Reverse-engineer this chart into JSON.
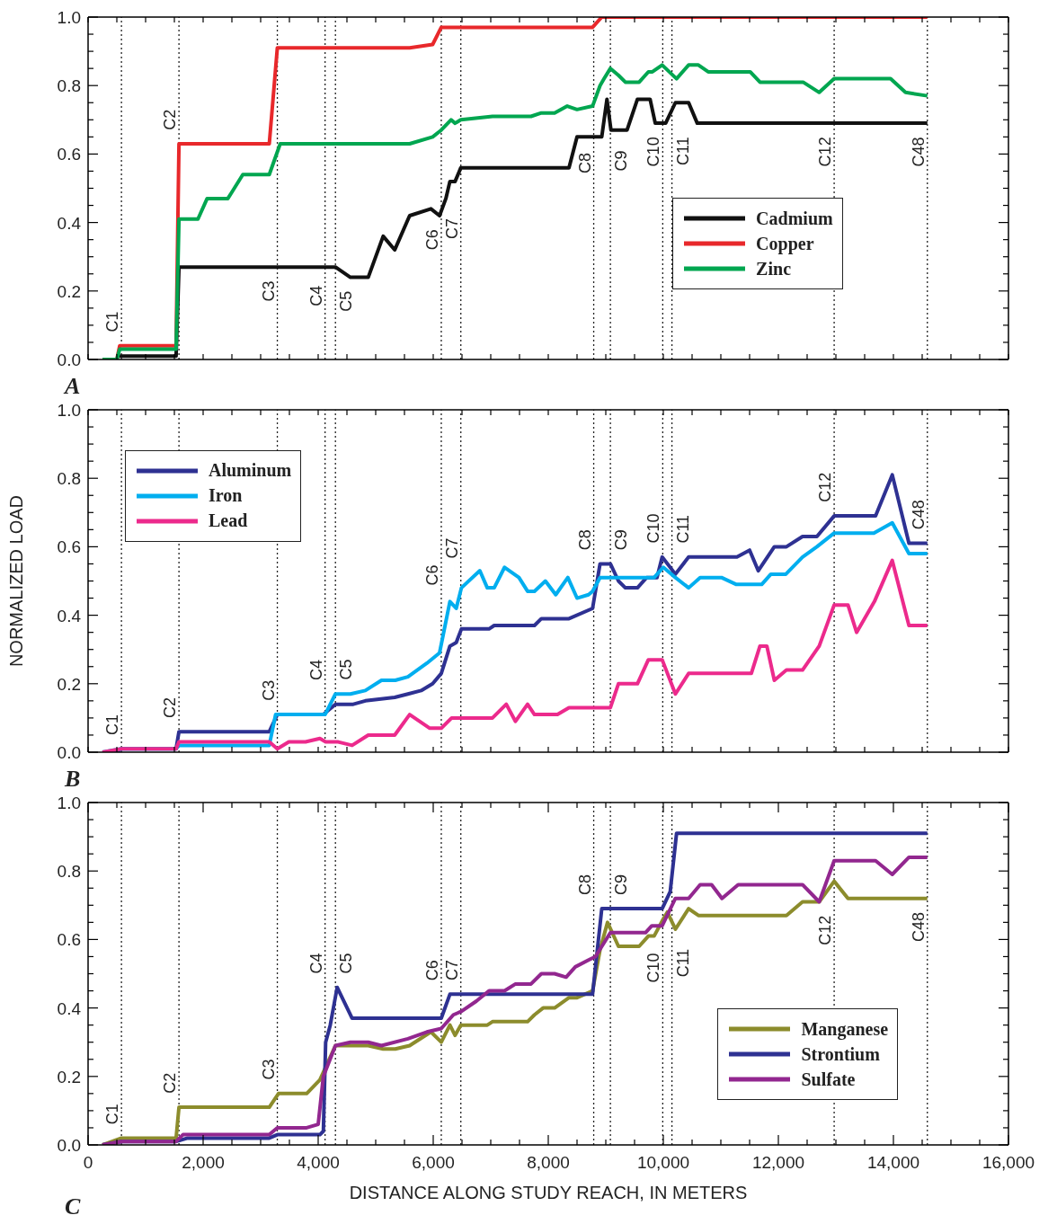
{
  "chart_data": [
    {
      "type": "line",
      "xlim": [
        0,
        16000
      ],
      "ylim": [
        0,
        1
      ],
      "tick_labels": "y",
      "legend": "right",
      "annotations": [
        "A"
      ],
      "xticks": [
        {
          "value": 0,
          "label": null
        },
        {
          "value": 500,
          "label": null
        },
        {
          "value": 1000,
          "label": null
        },
        {
          "value": 1500,
          "label": null
        },
        {
          "value": 2000,
          "label": null
        },
        {
          "value": 2500,
          "label": null
        },
        {
          "value": 3000,
          "label": null
        },
        {
          "value": 3500,
          "label": null
        },
        {
          "value": 4000,
          "label": null
        },
        {
          "value": 4500,
          "label": null
        },
        {
          "value": 5000,
          "label": null
        },
        {
          "value": 5500,
          "label": null
        },
        {
          "value": 6000,
          "label": null
        },
        {
          "value": 6500,
          "label": null
        },
        {
          "value": 7000,
          "label": null
        },
        {
          "value": 7500,
          "label": null
        },
        {
          "value": 8000,
          "label": null
        },
        {
          "value": 8500,
          "label": null
        },
        {
          "value": 9000,
          "label": null
        },
        {
          "value": 9500,
          "label": null
        },
        {
          "value": 10000,
          "label": null
        },
        {
          "value": 10500,
          "label": null
        },
        {
          "value": 11000,
          "label": null
        },
        {
          "value": 11500,
          "label": null
        },
        {
          "value": 12000,
          "label": null
        },
        {
          "value": 12500,
          "label": null
        },
        {
          "value": 13000,
          "label": null
        },
        {
          "value": 13500,
          "label": null
        },
        {
          "value": 14000,
          "label": null
        },
        {
          "value": 14500,
          "label": null
        },
        {
          "value": 15000,
          "label": null
        },
        {
          "value": 15500,
          "label": null
        },
        {
          "value": 16000,
          "label": null
        }
      ],
      "yticks": [
        {
          "value": 0,
          "label": "0.0"
        },
        {
          "value": 0.05,
          "label": null
        },
        {
          "value": 0.1,
          "label": null
        },
        {
          "value": 0.15,
          "label": null
        },
        {
          "value": 0.2,
          "label": "0.2"
        },
        {
          "value": 0.25,
          "label": null
        },
        {
          "value": 0.3,
          "label": null
        },
        {
          "value": 0.35,
          "label": null
        },
        {
          "value": 0.4,
          "label": "0.4"
        },
        {
          "value": 0.45,
          "label": null
        },
        {
          "value": 0.5,
          "label": null
        },
        {
          "value": 0.55,
          "label": null
        },
        {
          "value": 0.6,
          "label": "0.6"
        },
        {
          "value": 0.65,
          "label": null
        },
        {
          "value": 0.7,
          "label": null
        },
        {
          "value": 0.75,
          "label": null
        },
        {
          "value": 0.8,
          "label": "0.8"
        },
        {
          "value": 0.85,
          "label": null
        },
        {
          "value": 0.9,
          "label": null
        },
        {
          "value": 0.95,
          "label": null
        },
        {
          "value": 1,
          "label": "1.0"
        }
      ],
      "ref_lines": [
        {
          "axis": "x",
          "value": 580,
          "label": "C1",
          "line_style": "dotted"
        },
        {
          "axis": "x",
          "value": 1580,
          "label": "C2",
          "line_style": "dotted"
        },
        {
          "axis": "x",
          "value": 3290,
          "label": "C3",
          "line_style": "dotted"
        },
        {
          "axis": "x",
          "value": 4120,
          "label": "C4",
          "line_style": "dotted"
        },
        {
          "axis": "x",
          "value": 4300,
          "label": "C5",
          "line_style": "dotted"
        },
        {
          "axis": "x",
          "value": 6140,
          "label": "C6",
          "line_style": "dotted"
        },
        {
          "axis": "x",
          "value": 6480,
          "label": "C7",
          "line_style": "dotted"
        },
        {
          "axis": "x",
          "value": 8790,
          "label": "C8",
          "line_style": "dotted"
        },
        {
          "axis": "x",
          "value": 9080,
          "label": "C9",
          "line_style": "dotted"
        },
        {
          "axis": "x",
          "value": 9990,
          "label": "C10",
          "line_style": "dotted"
        },
        {
          "axis": "x",
          "value": 10150,
          "label": "C11",
          "line_style": "dotted"
        },
        {
          "axis": "x",
          "value": 12970,
          "label": "C12",
          "line_style": "dotted"
        },
        {
          "axis": "x",
          "value": 14590,
          "label": "C48",
          "line_style": "dotted"
        }
      ],
      "series": [
        {
          "name": "Cadmium",
          "color": "#111111",
          "x": [
            500,
            1530,
            1580,
            4300,
            4560,
            4870,
            5130,
            5330,
            5590,
            5960,
            6110,
            6220,
            6290,
            6380,
            6480,
            8360,
            8500,
            8930,
            9020,
            9090,
            9370,
            9550,
            9770,
            9860,
            10040,
            10210,
            10440,
            10590,
            14590
          ],
          "values": [
            0.01,
            0.01,
            0.27,
            0.27,
            0.24,
            0.24,
            0.36,
            0.32,
            0.42,
            0.44,
            0.42,
            0.47,
            0.52,
            0.52,
            0.56,
            0.56,
            0.65,
            0.65,
            0.76,
            0.67,
            0.67,
            0.76,
            0.76,
            0.69,
            0.69,
            0.75,
            0.75,
            0.69,
            0.69
          ]
        },
        {
          "name": "Copper",
          "color": "#e8282b",
          "x": [
            250,
            500,
            550,
            1530,
            1580,
            3150,
            3290,
            5590,
            5990,
            6140,
            8770,
            8930,
            14590
          ],
          "values": [
            0,
            0,
            0.04,
            0.04,
            0.63,
            0.63,
            0.91,
            0.91,
            0.92,
            0.97,
            0.97,
            1,
            1
          ]
        },
        {
          "name": "Zinc",
          "color": "#00a650",
          "x": [
            250,
            500,
            550,
            1530,
            1580,
            1910,
            2070,
            2430,
            2690,
            3150,
            3340,
            5590,
            5990,
            6140,
            6310,
            6380,
            6480,
            7030,
            7700,
            7880,
            8110,
            8330,
            8500,
            8770,
            8900,
            8970,
            9080,
            9220,
            9340,
            9580,
            9740,
            9810,
            9980,
            10230,
            10440,
            10610,
            10780,
            11510,
            11680,
            12430,
            12710,
            12970,
            13950,
            14210,
            14590
          ],
          "values": [
            0,
            0,
            0.03,
            0.03,
            0.41,
            0.41,
            0.47,
            0.47,
            0.54,
            0.54,
            0.63,
            0.63,
            0.65,
            0.67,
            0.7,
            0.69,
            0.7,
            0.71,
            0.71,
            0.72,
            0.72,
            0.74,
            0.73,
            0.74,
            0.8,
            0.82,
            0.85,
            0.83,
            0.81,
            0.81,
            0.84,
            0.84,
            0.86,
            0.82,
            0.86,
            0.86,
            0.84,
            0.84,
            0.81,
            0.81,
            0.78,
            0.82,
            0.82,
            0.78,
            0.77
          ]
        }
      ]
    },
    {
      "type": "line",
      "xlim": [
        0,
        16000
      ],
      "ylim": [
        0,
        1
      ],
      "tick_labels": "y",
      "legend": "top left",
      "annotations": [
        "B"
      ],
      "ylabel": "NORMALIZED LOAD",
      "xticks": [
        {
          "value": 0,
          "label": null
        },
        {
          "value": 500,
          "label": null
        },
        {
          "value": 1000,
          "label": null
        },
        {
          "value": 1500,
          "label": null
        },
        {
          "value": 2000,
          "label": null
        },
        {
          "value": 2500,
          "label": null
        },
        {
          "value": 3000,
          "label": null
        },
        {
          "value": 3500,
          "label": null
        },
        {
          "value": 4000,
          "label": null
        },
        {
          "value": 4500,
          "label": null
        },
        {
          "value": 5000,
          "label": null
        },
        {
          "value": 5500,
          "label": null
        },
        {
          "value": 6000,
          "label": null
        },
        {
          "value": 6500,
          "label": null
        },
        {
          "value": 7000,
          "label": null
        },
        {
          "value": 7500,
          "label": null
        },
        {
          "value": 8000,
          "label": null
        },
        {
          "value": 8500,
          "label": null
        },
        {
          "value": 9000,
          "label": null
        },
        {
          "value": 9500,
          "label": null
        },
        {
          "value": 10000,
          "label": null
        },
        {
          "value": 10500,
          "label": null
        },
        {
          "value": 11000,
          "label": null
        },
        {
          "value": 11500,
          "label": null
        },
        {
          "value": 12000,
          "label": null
        },
        {
          "value": 12500,
          "label": null
        },
        {
          "value": 13000,
          "label": null
        },
        {
          "value": 13500,
          "label": null
        },
        {
          "value": 14000,
          "label": null
        },
        {
          "value": 14500,
          "label": null
        },
        {
          "value": 15000,
          "label": null
        },
        {
          "value": 15500,
          "label": null
        },
        {
          "value": 16000,
          "label": null
        }
      ],
      "yticks": [
        {
          "value": 0,
          "label": "0.0"
        },
        {
          "value": 0.05,
          "label": null
        },
        {
          "value": 0.1,
          "label": null
        },
        {
          "value": 0.15,
          "label": null
        },
        {
          "value": 0.2,
          "label": "0.2"
        },
        {
          "value": 0.25,
          "label": null
        },
        {
          "value": 0.3,
          "label": null
        },
        {
          "value": 0.35,
          "label": null
        },
        {
          "value": 0.4,
          "label": "0.4"
        },
        {
          "value": 0.45,
          "label": null
        },
        {
          "value": 0.5,
          "label": null
        },
        {
          "value": 0.55,
          "label": null
        },
        {
          "value": 0.6,
          "label": "0.6"
        },
        {
          "value": 0.65,
          "label": null
        },
        {
          "value": 0.7,
          "label": null
        },
        {
          "value": 0.75,
          "label": null
        },
        {
          "value": 0.8,
          "label": "0.8"
        },
        {
          "value": 0.85,
          "label": null
        },
        {
          "value": 0.9,
          "label": null
        },
        {
          "value": 0.95,
          "label": null
        },
        {
          "value": 1,
          "label": "1.0"
        }
      ],
      "ref_lines": [
        {
          "axis": "x",
          "value": 580,
          "label": "C1",
          "line_style": "dotted"
        },
        {
          "axis": "x",
          "value": 1580,
          "label": "C2",
          "line_style": "dotted"
        },
        {
          "axis": "x",
          "value": 3290,
          "label": "C3",
          "line_style": "dotted"
        },
        {
          "axis": "x",
          "value": 4120,
          "label": "C4",
          "line_style": "dotted"
        },
        {
          "axis": "x",
          "value": 4300,
          "label": "C5",
          "line_style": "dotted"
        },
        {
          "axis": "x",
          "value": 6140,
          "label": "C6",
          "line_style": "dotted"
        },
        {
          "axis": "x",
          "value": 6480,
          "label": "C7",
          "line_style": "dotted"
        },
        {
          "axis": "x",
          "value": 8790,
          "label": "C8",
          "line_style": "dotted"
        },
        {
          "axis": "x",
          "value": 9080,
          "label": "C9",
          "line_style": "dotted"
        },
        {
          "axis": "x",
          "value": 9990,
          "label": "C10",
          "line_style": "dotted"
        },
        {
          "axis": "x",
          "value": 10150,
          "label": "C11",
          "line_style": "dotted"
        },
        {
          "axis": "x",
          "value": 12970,
          "label": "C12",
          "line_style": "dotted"
        },
        {
          "axis": "x",
          "value": 14590,
          "label": "C48",
          "line_style": "dotted"
        }
      ],
      "series": [
        {
          "name": "Aluminum",
          "color": "#2e3192",
          "x": [
            250,
            500,
            580,
            1530,
            1580,
            3150,
            3290,
            4090,
            4300,
            4610,
            4820,
            5330,
            5560,
            5790,
            5990,
            6140,
            6290,
            6400,
            6490,
            6970,
            7060,
            7760,
            7880,
            8360,
            8770,
            8900,
            9080,
            9220,
            9340,
            9550,
            9710,
            9890,
            9980,
            10210,
            10440,
            11280,
            11500,
            11650,
            11930,
            12140,
            12420,
            12670,
            12970,
            13690,
            13980,
            14270,
            14590
          ],
          "values": [
            0,
            0,
            0.01,
            0.01,
            0.06,
            0.06,
            0.11,
            0.11,
            0.14,
            0.14,
            0.15,
            0.16,
            0.17,
            0.18,
            0.2,
            0.23,
            0.31,
            0.32,
            0.36,
            0.36,
            0.37,
            0.37,
            0.39,
            0.39,
            0.42,
            0.55,
            0.55,
            0.5,
            0.48,
            0.48,
            0.51,
            0.51,
            0.57,
            0.52,
            0.57,
            0.57,
            0.59,
            0.53,
            0.6,
            0.6,
            0.63,
            0.63,
            0.69,
            0.69,
            0.81,
            0.61,
            0.61
          ]
        },
        {
          "name": "Iron",
          "color": "#00aeef",
          "x": [
            250,
            580,
            1530,
            1580,
            3150,
            3260,
            4120,
            4300,
            4560,
            4820,
            5100,
            5340,
            5560,
            5890,
            6110,
            6290,
            6400,
            6490,
            6810,
            6940,
            7060,
            7240,
            7490,
            7640,
            7760,
            7950,
            8130,
            8340,
            8500,
            8700,
            8770,
            8900,
            9840,
            10000,
            10210,
            10440,
            10640,
            11010,
            11270,
            11710,
            11870,
            12130,
            12420,
            12670,
            12970,
            13660,
            13980,
            14270,
            14590
          ],
          "values": [
            0,
            0.01,
            0.01,
            0.02,
            0.02,
            0.11,
            0.11,
            0.17,
            0.17,
            0.18,
            0.21,
            0.21,
            0.22,
            0.26,
            0.29,
            0.44,
            0.42,
            0.48,
            0.53,
            0.48,
            0.48,
            0.54,
            0.51,
            0.47,
            0.47,
            0.5,
            0.46,
            0.51,
            0.45,
            0.46,
            0.47,
            0.51,
            0.51,
            0.54,
            0.51,
            0.48,
            0.51,
            0.51,
            0.49,
            0.49,
            0.52,
            0.52,
            0.57,
            0.6,
            0.64,
            0.64,
            0.67,
            0.58,
            0.58
          ]
        },
        {
          "name": "Lead",
          "color": "#ec2a8c",
          "x": [
            250,
            580,
            1530,
            1580,
            3150,
            3290,
            3490,
            3780,
            4030,
            4130,
            4350,
            4590,
            4870,
            5330,
            5590,
            5940,
            6140,
            6320,
            7030,
            7270,
            7430,
            7640,
            7760,
            8160,
            8360,
            9080,
            9220,
            9550,
            9740,
            9980,
            10210,
            10440,
            11530,
            11680,
            11800,
            11930,
            12140,
            12420,
            12710,
            12970,
            13210,
            13360,
            13670,
            13980,
            14270,
            14590
          ],
          "values": [
            0,
            0.01,
            0.01,
            0.03,
            0.03,
            0.01,
            0.03,
            0.03,
            0.04,
            0.03,
            0.03,
            0.02,
            0.05,
            0.05,
            0.11,
            0.07,
            0.07,
            0.1,
            0.1,
            0.14,
            0.09,
            0.14,
            0.11,
            0.11,
            0.13,
            0.13,
            0.2,
            0.2,
            0.27,
            0.27,
            0.17,
            0.23,
            0.23,
            0.31,
            0.31,
            0.21,
            0.24,
            0.24,
            0.31,
            0.43,
            0.43,
            0.35,
            0.44,
            0.56,
            0.37,
            0.37
          ]
        }
      ]
    },
    {
      "type": "line",
      "xlim": [
        0,
        16000
      ],
      "ylim": [
        0,
        1
      ],
      "legend": "bottom right",
      "annotations": [
        "C"
      ],
      "xlabel": "DISTANCE ALONG STUDY REACH, IN METERS",
      "xticks": [
        0,
        {
          "value": 500,
          "label": null
        },
        {
          "value": 1000,
          "label": null
        },
        {
          "value": 1500,
          "label": null
        },
        {
          "value": 2000,
          "label": "2,000"
        },
        {
          "value": 2500,
          "label": null
        },
        {
          "value": 3000,
          "label": null
        },
        {
          "value": 3500,
          "label": null
        },
        {
          "value": 4000,
          "label": "4,000"
        },
        {
          "value": 4500,
          "label": null
        },
        {
          "value": 5000,
          "label": null
        },
        {
          "value": 5500,
          "label": null
        },
        {
          "value": 6000,
          "label": "6,000"
        },
        {
          "value": 6500,
          "label": null
        },
        {
          "value": 7000,
          "label": null
        },
        {
          "value": 7500,
          "label": null
        },
        {
          "value": 8000,
          "label": "8,000"
        },
        {
          "value": 8500,
          "label": null
        },
        {
          "value": 9000,
          "label": null
        },
        {
          "value": 9500,
          "label": null
        },
        {
          "value": 10000,
          "label": "10,000"
        },
        {
          "value": 10500,
          "label": null
        },
        {
          "value": 11000,
          "label": null
        },
        {
          "value": 11500,
          "label": null
        },
        {
          "value": 12000,
          "label": "12,000"
        },
        {
          "value": 12500,
          "label": null
        },
        {
          "value": 13000,
          "label": null
        },
        {
          "value": 13500,
          "label": null
        },
        {
          "value": 14000,
          "label": "14,000"
        },
        {
          "value": 14500,
          "label": null
        },
        {
          "value": 15000,
          "label": null
        },
        {
          "value": 15500,
          "label": null
        },
        {
          "value": 16000,
          "label": "16,000"
        }
      ],
      "yticks": [
        {
          "value": 0,
          "label": "0.0"
        },
        {
          "value": 0.05,
          "label": null
        },
        {
          "value": 0.1,
          "label": null
        },
        {
          "value": 0.15,
          "label": null
        },
        {
          "value": 0.2,
          "label": "0.2"
        },
        {
          "value": 0.25,
          "label": null
        },
        {
          "value": 0.3,
          "label": null
        },
        {
          "value": 0.35,
          "label": null
        },
        {
          "value": 0.4,
          "label": "0.4"
        },
        {
          "value": 0.45,
          "label": null
        },
        {
          "value": 0.5,
          "label": null
        },
        {
          "value": 0.55,
          "label": null
        },
        {
          "value": 0.6,
          "label": "0.6"
        },
        {
          "value": 0.65,
          "label": null
        },
        {
          "value": 0.7,
          "label": null
        },
        {
          "value": 0.75,
          "label": null
        },
        {
          "value": 0.8,
          "label": "0.8"
        },
        {
          "value": 0.85,
          "label": null
        },
        {
          "value": 0.9,
          "label": null
        },
        {
          "value": 0.95,
          "label": null
        },
        {
          "value": 1,
          "label": "1.0"
        }
      ],
      "ref_lines": [
        {
          "axis": "x",
          "value": 580,
          "label": "C1",
          "line_style": "dotted"
        },
        {
          "axis": "x",
          "value": 1580,
          "label": "C2",
          "line_style": "dotted"
        },
        {
          "axis": "x",
          "value": 3290,
          "label": "C3",
          "line_style": "dotted"
        },
        {
          "axis": "x",
          "value": 4120,
          "label": "C4",
          "line_style": "dotted"
        },
        {
          "axis": "x",
          "value": 4300,
          "label": "C5",
          "line_style": "dotted"
        },
        {
          "axis": "x",
          "value": 6140,
          "label": "C6",
          "line_style": "dotted"
        },
        {
          "axis": "x",
          "value": 6480,
          "label": "C7",
          "line_style": "dotted"
        },
        {
          "axis": "x",
          "value": 8790,
          "label": "C8",
          "line_style": "dotted"
        },
        {
          "axis": "x",
          "value": 9080,
          "label": "C9",
          "line_style": "dotted"
        },
        {
          "axis": "x",
          "value": 9990,
          "label": "C10",
          "line_style": "dotted"
        },
        {
          "axis": "x",
          "value": 10150,
          "label": "C11",
          "line_style": "dotted"
        },
        {
          "axis": "x",
          "value": 12970,
          "label": "C12",
          "line_style": "dotted"
        },
        {
          "axis": "x",
          "value": 14590,
          "label": "C48",
          "line_style": "dotted"
        }
      ],
      "series": [
        {
          "name": "Manganese",
          "color": "#8c8c2c",
          "x": [
            250,
            580,
            1530,
            1580,
            3150,
            3310,
            3800,
            4030,
            4300,
            4870,
            5130,
            5340,
            5590,
            5960,
            6140,
            6290,
            6380,
            6480,
            6940,
            7030,
            7640,
            7760,
            7910,
            8110,
            8360,
            8500,
            8770,
            8900,
            9030,
            9220,
            9580,
            9740,
            9840,
            10000,
            10070,
            10210,
            10440,
            10610,
            12140,
            12420,
            12710,
            12970,
            13210,
            14590
          ],
          "values": [
            0,
            0.02,
            0.02,
            0.11,
            0.11,
            0.15,
            0.15,
            0.19,
            0.29,
            0.29,
            0.28,
            0.28,
            0.29,
            0.33,
            0.3,
            0.35,
            0.32,
            0.35,
            0.35,
            0.36,
            0.36,
            0.38,
            0.4,
            0.4,
            0.43,
            0.43,
            0.45,
            0.57,
            0.65,
            0.58,
            0.58,
            0.61,
            0.61,
            0.66,
            0.68,
            0.63,
            0.69,
            0.67,
            0.67,
            0.71,
            0.71,
            0.77,
            0.72,
            0.72
          ]
        },
        {
          "name": "Strontium",
          "color": "#2e3192",
          "x": [
            250,
            580,
            1530,
            1730,
            3150,
            3290,
            4030,
            4090,
            4130,
            4210,
            4330,
            4590,
            6140,
            6290,
            8770,
            8930,
            9980,
            10120,
            10230,
            14590
          ],
          "values": [
            0,
            0.01,
            0.01,
            0.02,
            0.02,
            0.03,
            0.03,
            0.04,
            0.3,
            0.35,
            0.46,
            0.37,
            0.37,
            0.44,
            0.44,
            0.69,
            0.69,
            0.74,
            0.91,
            0.91
          ]
        },
        {
          "name": "Sulfate",
          "color": "#92278f",
          "x": [
            250,
            580,
            1530,
            1650,
            3150,
            3290,
            3800,
            4000,
            4090,
            4300,
            4560,
            4870,
            5100,
            5560,
            5890,
            6140,
            6350,
            6490,
            6750,
            6970,
            7240,
            7430,
            7700,
            7880,
            8110,
            8310,
            8470,
            8700,
            8820,
            9080,
            9690,
            9800,
            9980,
            10210,
            10440,
            10640,
            10840,
            11020,
            11300,
            12420,
            12710,
            12970,
            13690,
            13980,
            14270,
            14590
          ],
          "values": [
            0,
            0.01,
            0.01,
            0.03,
            0.03,
            0.05,
            0.05,
            0.06,
            0.2,
            0.29,
            0.3,
            0.3,
            0.29,
            0.31,
            0.33,
            0.34,
            0.38,
            0.39,
            0.42,
            0.45,
            0.45,
            0.47,
            0.47,
            0.5,
            0.5,
            0.49,
            0.52,
            0.54,
            0.55,
            0.62,
            0.62,
            0.64,
            0.64,
            0.72,
            0.72,
            0.76,
            0.76,
            0.72,
            0.76,
            0.76,
            0.71,
            0.83,
            0.83,
            0.79,
            0.84,
            0.84
          ]
        }
      ]
    }
  ]
}
